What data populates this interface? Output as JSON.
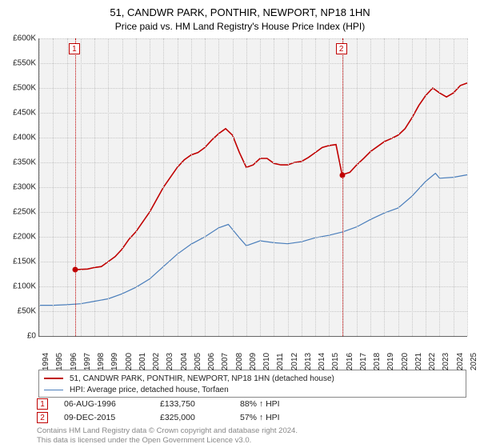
{
  "title_line1": "51, CANDWR PARK, PONTHIR, NEWPORT, NP18 1HN",
  "title_line2": "Price paid vs. HM Land Registry's House Price Index (HPI)",
  "chart": {
    "type": "line",
    "plot_bg": "#f2f2f2",
    "grid_color": "#c7c7c7",
    "x_start_year": 1994,
    "x_end_year": 2025,
    "x_ticks": [
      1994,
      1995,
      1996,
      1997,
      1998,
      1999,
      2000,
      2001,
      2002,
      2003,
      2004,
      2005,
      2006,
      2007,
      2008,
      2009,
      2010,
      2011,
      2012,
      2013,
      2014,
      2015,
      2016,
      2017,
      2018,
      2019,
      2020,
      2021,
      2022,
      2023,
      2024,
      2025
    ],
    "y_min": 0,
    "y_max": 600000,
    "y_step": 50000,
    "y_tick_labels": [
      "£0",
      "£50K",
      "£100K",
      "£150K",
      "£200K",
      "£250K",
      "£300K",
      "£350K",
      "£400K",
      "£450K",
      "£500K",
      "£550K",
      "£600K"
    ],
    "series": [
      {
        "name": "51, CANDWR PARK, PONTHIR, NEWPORT, NP18 1HN (detached house)",
        "color": "#c00000",
        "width": 1.6,
        "points": [
          [
            1996.6,
            133750
          ],
          [
            1997.5,
            135000
          ],
          [
            1998.0,
            138000
          ],
          [
            1998.5,
            140000
          ],
          [
            1999.0,
            150000
          ],
          [
            1999.5,
            160000
          ],
          [
            2000.0,
            175000
          ],
          [
            2000.5,
            195000
          ],
          [
            2001.0,
            210000
          ],
          [
            2001.5,
            230000
          ],
          [
            2002.0,
            250000
          ],
          [
            2002.5,
            275000
          ],
          [
            2003.0,
            300000
          ],
          [
            2003.5,
            320000
          ],
          [
            2004.0,
            340000
          ],
          [
            2004.5,
            355000
          ],
          [
            2005.0,
            365000
          ],
          [
            2005.5,
            370000
          ],
          [
            2006.0,
            380000
          ],
          [
            2006.5,
            395000
          ],
          [
            2007.0,
            408000
          ],
          [
            2007.5,
            418000
          ],
          [
            2008.0,
            405000
          ],
          [
            2008.5,
            370000
          ],
          [
            2009.0,
            340000
          ],
          [
            2009.5,
            345000
          ],
          [
            2010.0,
            358000
          ],
          [
            2010.5,
            358000
          ],
          [
            2011.0,
            348000
          ],
          [
            2011.5,
            345000
          ],
          [
            2012.0,
            345000
          ],
          [
            2012.5,
            350000
          ],
          [
            2013.0,
            352000
          ],
          [
            2013.5,
            360000
          ],
          [
            2014.0,
            370000
          ],
          [
            2014.5,
            380000
          ],
          [
            2015.0,
            384000
          ],
          [
            2015.5,
            386000
          ],
          [
            2015.94,
            325000
          ],
          [
            2016.5,
            330000
          ],
          [
            2017.0,
            345000
          ],
          [
            2017.5,
            358000
          ],
          [
            2018.0,
            372000
          ],
          [
            2018.5,
            382000
          ],
          [
            2019.0,
            392000
          ],
          [
            2019.5,
            398000
          ],
          [
            2020.0,
            405000
          ],
          [
            2020.5,
            418000
          ],
          [
            2021.0,
            440000
          ],
          [
            2021.5,
            465000
          ],
          [
            2022.0,
            485000
          ],
          [
            2022.5,
            500000
          ],
          [
            2023.0,
            490000
          ],
          [
            2023.5,
            482000
          ],
          [
            2024.0,
            490000
          ],
          [
            2024.5,
            505000
          ],
          [
            2025.0,
            510000
          ]
        ]
      },
      {
        "name": "HPI: Average price, detached house, Torfaen",
        "color": "#4a7ebb",
        "width": 1.2,
        "points": [
          [
            1994.0,
            62000
          ],
          [
            1995.0,
            62000
          ],
          [
            1996.0,
            63000
          ],
          [
            1997.0,
            65000
          ],
          [
            1998.0,
            70000
          ],
          [
            1999.0,
            75000
          ],
          [
            2000.0,
            85000
          ],
          [
            2001.0,
            98000
          ],
          [
            2002.0,
            115000
          ],
          [
            2003.0,
            140000
          ],
          [
            2004.0,
            165000
          ],
          [
            2005.0,
            185000
          ],
          [
            2006.0,
            200000
          ],
          [
            2007.0,
            218000
          ],
          [
            2007.7,
            225000
          ],
          [
            2008.0,
            215000
          ],
          [
            2008.5,
            198000
          ],
          [
            2009.0,
            182000
          ],
          [
            2010.0,
            192000
          ],
          [
            2011.0,
            188000
          ],
          [
            2012.0,
            186000
          ],
          [
            2013.0,
            190000
          ],
          [
            2014.0,
            198000
          ],
          [
            2015.0,
            203000
          ],
          [
            2016.0,
            210000
          ],
          [
            2017.0,
            220000
          ],
          [
            2018.0,
            235000
          ],
          [
            2019.0,
            248000
          ],
          [
            2020.0,
            258000
          ],
          [
            2021.0,
            282000
          ],
          [
            2022.0,
            312000
          ],
          [
            2022.7,
            328000
          ],
          [
            2023.0,
            318000
          ],
          [
            2024.0,
            320000
          ],
          [
            2025.0,
            325000
          ]
        ]
      }
    ],
    "markers": [
      {
        "n": "1",
        "x_year": 1996.6,
        "y_value": 133750
      },
      {
        "n": "2",
        "x_year": 2015.94,
        "y_value": 325000
      }
    ]
  },
  "legend": {
    "items": [
      {
        "color": "#c00000",
        "width": 2,
        "label": "51, CANDWR PARK, PONTHIR, NEWPORT, NP18 1HN (detached house)"
      },
      {
        "color": "#4a7ebb",
        "width": 1,
        "label": "HPI: Average price, detached house, Torfaen"
      }
    ]
  },
  "transactions": [
    {
      "n": "1",
      "date": "06-AUG-1996",
      "price": "£133,750",
      "hpi": "88% ↑ HPI"
    },
    {
      "n": "2",
      "date": "09-DEC-2015",
      "price": "£325,000",
      "hpi": "57% ↑ HPI"
    }
  ],
  "footer_line1": "Contains HM Land Registry data © Crown copyright and database right 2024.",
  "footer_line2": "This data is licensed under the Open Government Licence v3.0."
}
